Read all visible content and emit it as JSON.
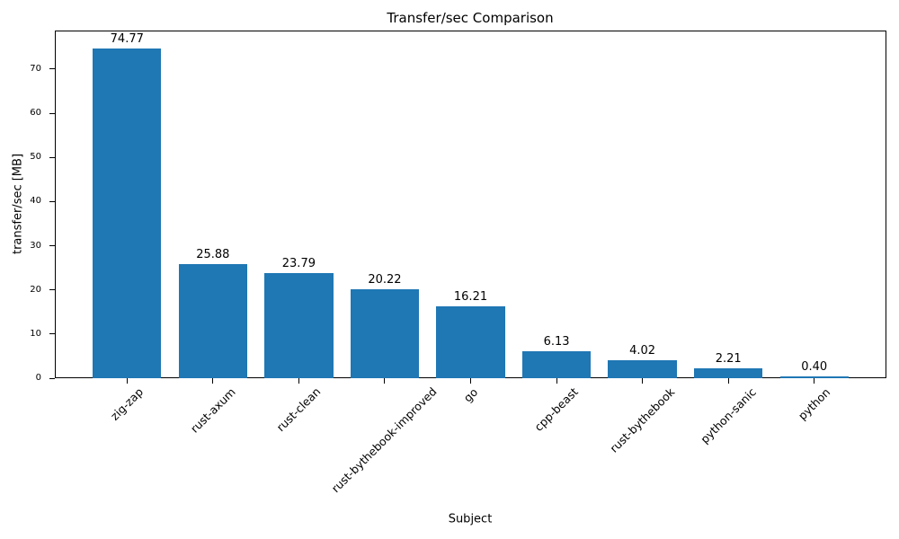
{
  "figure": {
    "background": "#ffffff",
    "text_color": "#000000",
    "spine_color": "#000000"
  },
  "chart_data": {
    "type": "bar",
    "title": "Transfer/sec Comparison",
    "xlabel": "Subject",
    "ylabel": "transfer/sec [MB]",
    "categories": [
      "zig-zap",
      "rust-axum",
      "rust-clean",
      "rust-bythebook-improved",
      "go",
      "cpp-beast",
      "rust-bythebook",
      "python-sanic",
      "python"
    ],
    "values": [
      74.77,
      25.88,
      23.79,
      20.22,
      16.21,
      6.13,
      4.02,
      2.21,
      0.4
    ],
    "value_labels": [
      "74.77",
      "25.88",
      "23.79",
      "20.22",
      "16.21",
      "6.13",
      "4.02",
      "2.21",
      "0.40"
    ],
    "bar_color": "#1f77b4",
    "ylim": [
      0,
      78.74
    ],
    "yticks": [
      0,
      10,
      20,
      30,
      40,
      50,
      60,
      70
    ],
    "xtick_rotation_deg": 45,
    "bar_rel_width": 0.8,
    "grid": false,
    "legend": null
  }
}
